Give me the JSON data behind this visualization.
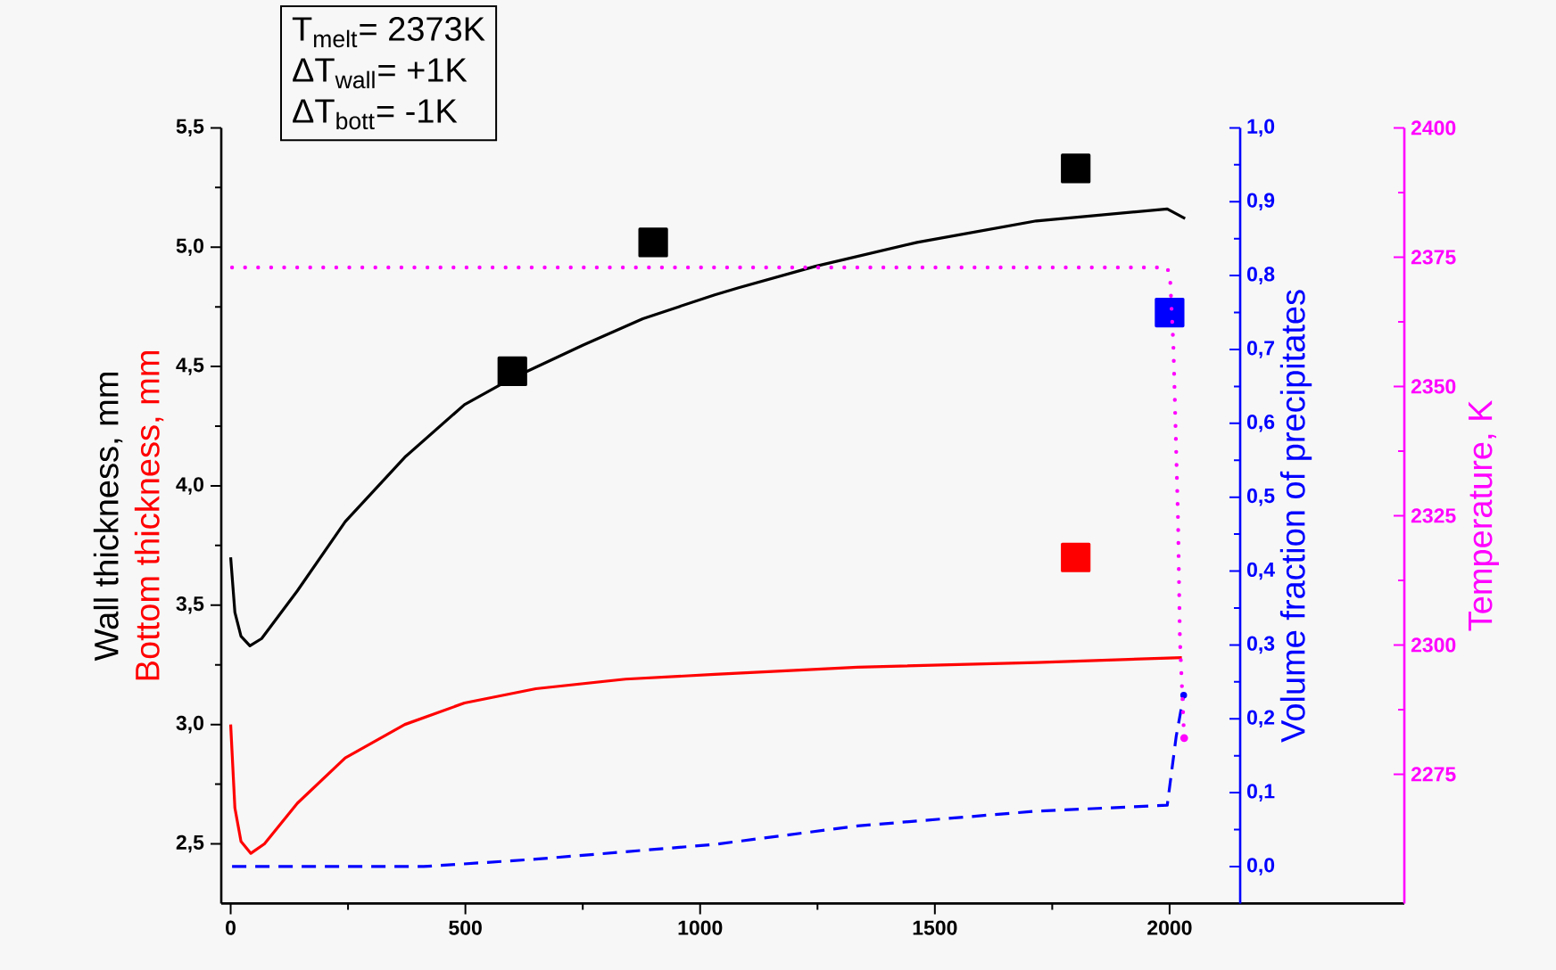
{
  "chart_data": {
    "type": "line",
    "xlim": [
      -20,
      2500
    ],
    "xticks": [
      0,
      500,
      1000,
      1500,
      2000
    ],
    "ylim": [
      2.25,
      5.5
    ],
    "yticks": [
      {
        "value": 2.5,
        "label": "2,5"
      },
      {
        "value": 3.0,
        "label": "3,0"
      },
      {
        "value": 3.5,
        "label": "3,5"
      },
      {
        "value": 4.0,
        "label": "4,0"
      },
      {
        "value": 4.5,
        "label": "4,5"
      },
      {
        "value": 5.0,
        "label": "5,0"
      },
      {
        "value": 5.5,
        "label": "5,5"
      }
    ],
    "y2lim": [
      -0.05,
      1.0
    ],
    "y2ticks": [
      {
        "value": 0.0,
        "label": "0,0"
      },
      {
        "value": 0.1,
        "label": "0,1"
      },
      {
        "value": 0.2,
        "label": "0,2"
      },
      {
        "value": 0.3,
        "label": "0,3"
      },
      {
        "value": 0.4,
        "label": "0,4"
      },
      {
        "value": 0.5,
        "label": "0,5"
      },
      {
        "value": 0.6,
        "label": "0,6"
      },
      {
        "value": 0.7,
        "label": "0,7"
      },
      {
        "value": 0.8,
        "label": "0,8"
      },
      {
        "value": 0.9,
        "label": "0,9"
      },
      {
        "value": 1.0,
        "label": "1,0"
      }
    ],
    "y3lim": [
      2250,
      2400
    ],
    "y3ticks": [
      2275,
      2300,
      2325,
      2350,
      2375,
      2400
    ],
    "ylabel": "Wall thickness,  mm",
    "y2label": "Volume fraction of precipitates",
    "y3label": "Temperature,  K",
    "annotations": [
      "T$_{melt}$= 2373K",
      "ΔT$_{wall}$= +1K",
      "ΔT$_{bott}$= -1K"
    ],
    "series": [
      {
        "color": "#000000",
        "line_style": "solid",
        "marker": "none",
        "x": [
          0,
          9,
          22,
          41,
          66,
          142,
          244,
          371,
          498,
          599,
          751,
          878,
          954,
          1031,
          1082,
          1246,
          1462,
          1716,
          1995,
          2033
        ],
        "values": [
          3.7,
          3.47,
          3.37,
          3.33,
          3.36,
          3.56,
          3.85,
          4.12,
          4.34,
          4.45,
          4.59,
          4.7,
          4.75,
          4.8,
          4.83,
          4.92,
          5.02,
          5.11,
          5.16,
          5.12
        ]
      },
      {
        "name": "Bottom thickness,  mm",
        "color": "#ff0000",
        "line_style": "solid",
        "marker": "none",
        "x": [
          0,
          9,
          22,
          43,
          72,
          142,
          244,
          371,
          498,
          650,
          841,
          1031,
          1335,
          1716,
          2026
        ],
        "values": [
          3.0,
          2.65,
          2.51,
          2.46,
          2.5,
          2.67,
          2.86,
          3.0,
          3.09,
          3.15,
          3.19,
          3.21,
          3.24,
          3.26,
          3.28
        ]
      },
      {
        "axis": "y2",
        "color": "#0000ff",
        "line_style": "dashed",
        "marker": "none",
        "x": [
          3,
          411,
          650,
          1031,
          1335,
          1716,
          1995,
          2014,
          2030
        ],
        "values": [
          0.0,
          0.0,
          0.01,
          0.03,
          0.055,
          0.075,
          0.083,
          0.176,
          0.232
        ]
      },
      {
        "axis": "y3",
        "color": "#ff00ff",
        "line_style": "dotted",
        "marker": "none",
        "x": [
          3,
          1995,
          2001,
          2008,
          2018,
          2022,
          2031
        ],
        "values": [
          2373,
          2373,
          2371,
          2358,
          2324,
          2301,
          2282
        ]
      },
      {
        "type": "scatter",
        "color": "#000000",
        "marker": "square",
        "x": [
          600,
          900,
          1800
        ],
        "values": [
          4.48,
          5.02,
          5.33
        ]
      },
      {
        "type": "scatter",
        "color": "#ff0000",
        "marker": "square",
        "x": [
          1800
        ],
        "values": [
          3.7
        ]
      },
      {
        "type": "scatter",
        "axis": "y2",
        "color": "#0000ff",
        "marker": "square",
        "x": [
          2000
        ],
        "values": [
          0.75
        ]
      }
    ]
  }
}
